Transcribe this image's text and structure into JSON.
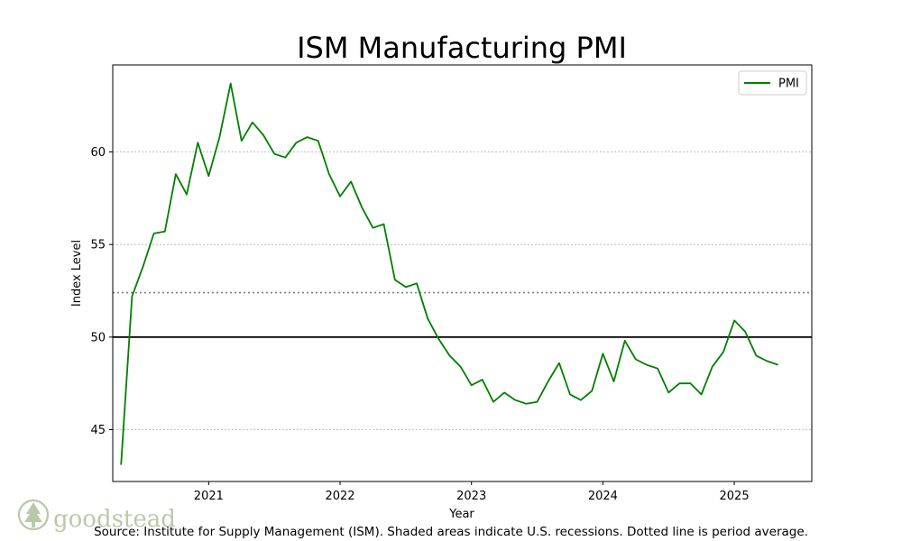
{
  "chart_data": {
    "type": "line",
    "title": "ISM Manufacturing PMI",
    "xlabel": "Year",
    "ylabel": "Index Level",
    "xlim": [
      2020.27,
      2025.59
    ],
    "ylim": [
      42.2,
      64.7
    ],
    "xticks": [
      2021,
      2022,
      2023,
      2024,
      2025
    ],
    "xtick_labels": [
      "2021",
      "2022",
      "2023",
      "2024",
      "2025"
    ],
    "yticks": [
      45,
      50,
      55,
      60
    ],
    "ytick_labels": [
      "45",
      "50",
      "55",
      "60"
    ],
    "grid": "horizontal dotted",
    "legend_position": "top-right",
    "reference_lines": [
      {
        "name": "neutral",
        "value": 50,
        "style": "solid",
        "color": "#000000"
      },
      {
        "name": "period-average",
        "value": 52.4,
        "style": "dotted",
        "color": "#808080"
      }
    ],
    "series": [
      {
        "name": "PMI",
        "color": "#007f00",
        "x": [
          2020.333,
          2020.417,
          2020.5,
          2020.583,
          2020.667,
          2020.75,
          2020.833,
          2020.917,
          2021.0,
          2021.083,
          2021.167,
          2021.25,
          2021.333,
          2021.417,
          2021.5,
          2021.583,
          2021.667,
          2021.75,
          2021.833,
          2021.917,
          2022.0,
          2022.083,
          2022.167,
          2022.25,
          2022.333,
          2022.417,
          2022.5,
          2022.583,
          2022.667,
          2022.75,
          2022.833,
          2022.917,
          2023.0,
          2023.083,
          2023.167,
          2023.25,
          2023.333,
          2023.417,
          2023.5,
          2023.583,
          2023.667,
          2023.75,
          2023.833,
          2023.917,
          2024.0,
          2024.083,
          2024.167,
          2024.25,
          2024.333,
          2024.417,
          2024.5,
          2024.583,
          2024.667,
          2024.75,
          2024.833,
          2024.917,
          2025.0,
          2025.083,
          2025.167,
          2025.25,
          2025.333
        ],
        "values": [
          43.1,
          52.2,
          53.8,
          55.6,
          55.7,
          58.8,
          57.7,
          60.5,
          58.7,
          60.8,
          63.7,
          60.6,
          61.6,
          60.9,
          59.9,
          59.7,
          60.5,
          60.8,
          60.6,
          58.8,
          57.6,
          58.4,
          57.0,
          55.9,
          56.1,
          53.1,
          52.7,
          52.9,
          51.0,
          49.9,
          49.0,
          48.4,
          47.4,
          47.7,
          46.5,
          47.0,
          46.6,
          46.4,
          46.5,
          47.6,
          48.6,
          46.9,
          46.6,
          47.1,
          49.1,
          47.6,
          49.8,
          48.8,
          48.5,
          48.3,
          47.0,
          47.5,
          47.5,
          46.9,
          48.4,
          49.2,
          50.9,
          50.3,
          49.0,
          48.7,
          48.5
        ]
      }
    ]
  },
  "logo": {
    "text": "goodstead"
  },
  "source": {
    "text": "Source:  Institute for Supply Management (ISM). Shaded areas indicate U.S. recessions. Dotted line is period average."
  }
}
